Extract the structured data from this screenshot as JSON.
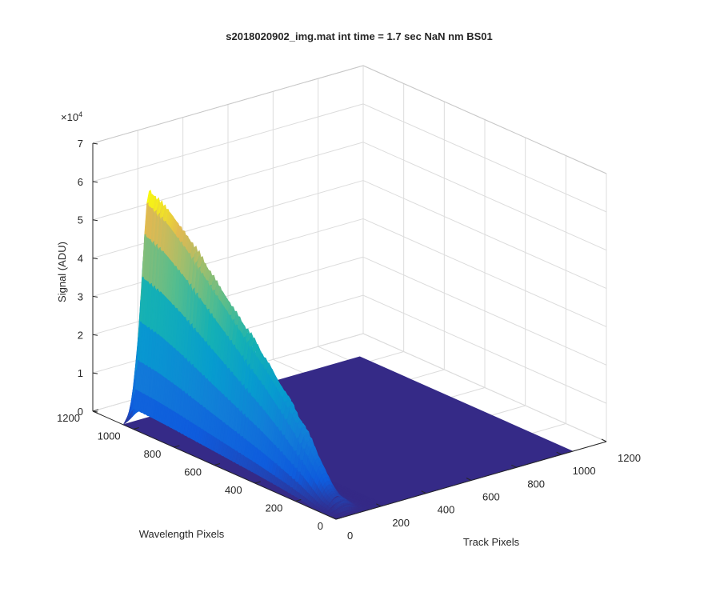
{
  "chart_data": {
    "type": "surface",
    "title": "s2018020902_img.mat int time = 1.7 sec  NaN nm BS01",
    "xlabel": "Track Pixels",
    "ylabel": "Wavelength Pixels",
    "zlabel": "Signal (ADU)",
    "z_exponent_label": "×10",
    "z_exponent_power": "4",
    "xlim": [
      0,
      1200
    ],
    "ylim": [
      0,
      1200
    ],
    "zlim": [
      0,
      70000
    ],
    "x_ticks": [
      "0",
      "200",
      "400",
      "600",
      "800",
      "1000",
      "1200"
    ],
    "y_ticks": [
      "0",
      "200",
      "400",
      "600",
      "800",
      "1000",
      "1200"
    ],
    "z_ticks": [
      "0",
      "1",
      "2",
      "3",
      "4",
      "5",
      "6",
      "7"
    ],
    "grid": true,
    "colormap": "parula",
    "colors": {
      "base": "#352a87",
      "low": "#0f5cdd",
      "mid": "#12b0c8",
      "high": "#a5be35",
      "peak": "#f9d825"
    },
    "peak_ridge": {
      "track_center": 70,
      "wavelength": [
        0,
        100,
        200,
        300,
        400,
        500,
        600,
        700,
        800,
        900,
        1000,
        1050
      ],
      "signal": [
        0,
        4000,
        14000,
        22000,
        29000,
        35000,
        41000,
        47000,
        53000,
        58000,
        61000,
        0
      ]
    }
  }
}
